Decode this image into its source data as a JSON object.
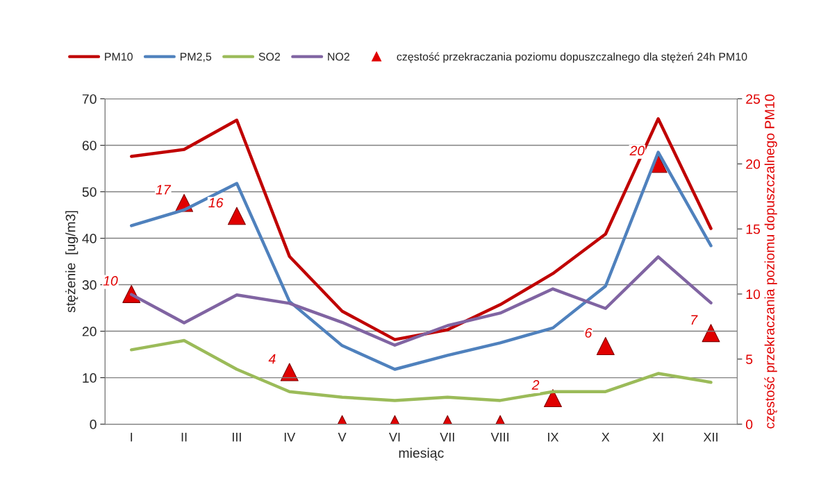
{
  "chart_data": {
    "type": "line",
    "xlabel": "miesiąc",
    "ylabel": "stężenie  [ug/m3]",
    "y2label": "częstość przekraczania poziomu dopuszczalnego PM10",
    "categories": [
      "I",
      "II",
      "III",
      "IV",
      "V",
      "VI",
      "VII",
      "VIII",
      "IX",
      "X",
      "XI",
      "XII"
    ],
    "ylim": [
      0,
      70
    ],
    "yticks": [
      0,
      10,
      20,
      30,
      40,
      50,
      60,
      70
    ],
    "y2lim": [
      0,
      25
    ],
    "y2ticks": [
      0,
      5,
      10,
      15,
      20,
      25
    ],
    "grid": "y",
    "legend": "top",
    "series": [
      {
        "name": "PM10",
        "color": "#c00000",
        "values": [
          57.6,
          59.1,
          65.4,
          36.1,
          24.3,
          18.2,
          20.3,
          25.7,
          32.4,
          40.9,
          65.7,
          42.1
        ]
      },
      {
        "name": "PM2,5",
        "color": "#4f81bd",
        "values": [
          42.7,
          46.1,
          51.8,
          26.4,
          16.9,
          11.8,
          14.8,
          17.5,
          20.7,
          29.7,
          58.5,
          38.4
        ]
      },
      {
        "name": "SO2",
        "color": "#9bbb59",
        "values": [
          16,
          18,
          11.8,
          7,
          5.8,
          5.1,
          5.8,
          5.1,
          7,
          7,
          10.9,
          9
        ]
      },
      {
        "name": "NO2",
        "color": "#8064a2",
        "values": [
          27.9,
          21.8,
          27.8,
          26,
          21.9,
          17,
          21.2,
          23.9,
          29.1,
          24.9,
          36,
          26.1
        ]
      },
      {
        "name": "częstość przekraczania poziomu dopuszczalnego dla stężeń 24h PM10",
        "type": "scatter",
        "axis": "y2",
        "marker": "triangle",
        "color": "#e00000",
        "values": [
          10,
          17,
          16,
          4,
          0,
          0,
          0,
          0,
          2,
          6,
          20,
          7
        ],
        "value_labels": [
          "10",
          "17",
          "16",
          "4",
          null,
          null,
          null,
          null,
          "2",
          "6",
          "20",
          "7"
        ]
      }
    ]
  }
}
